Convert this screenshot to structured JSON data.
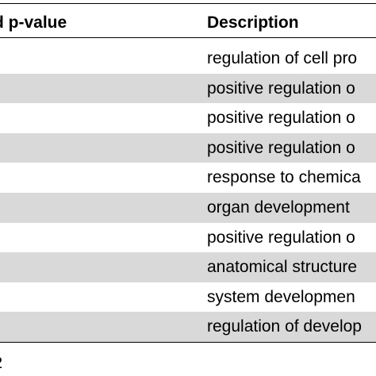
{
  "table": {
    "headers": {
      "col1": "d p-value",
      "col2": "Description"
    },
    "rows": [
      {
        "description": "regulation of cell pro",
        "shaded": false
      },
      {
        "description": "positive regulation o",
        "shaded": true
      },
      {
        "description": "positive regulation o",
        "shaded": false
      },
      {
        "description": "positive regulation o",
        "shaded": true
      },
      {
        "description": "response to chemica",
        "shaded": false
      },
      {
        "description": "organ development",
        "shaded": true
      },
      {
        "description": "positive regulation o",
        "shaded": false
      },
      {
        "description": "anatomical structure",
        "shaded": true
      },
      {
        "description": "system developmen",
        "shaded": false
      },
      {
        "description": "regulation of develop",
        "shaded": true
      }
    ]
  },
  "footnote": "2"
}
